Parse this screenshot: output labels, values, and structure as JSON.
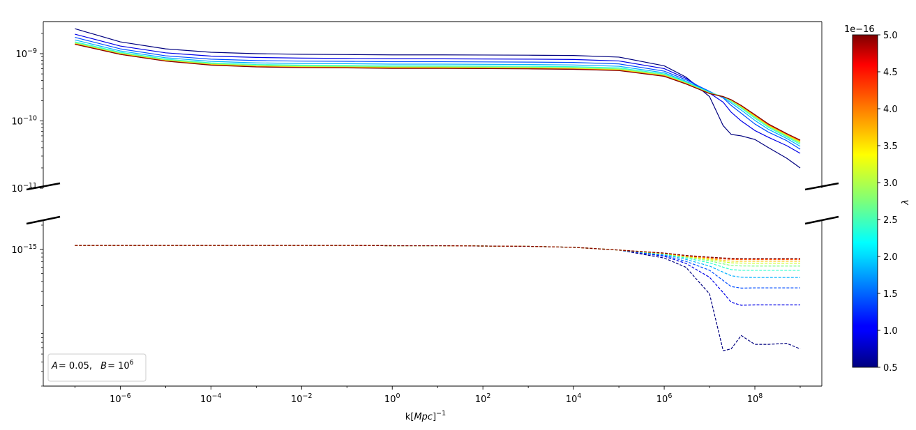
{
  "chart_data": {
    "type": "line",
    "xlabel": "k[Mpc]⁻¹",
    "x_scale": "log",
    "xlim": [
      2e-08,
      3000000000.0
    ],
    "x_ticks": [
      {
        "value": 1e-06,
        "base": "10",
        "exp": "−6"
      },
      {
        "value": 0.0001,
        "base": "10",
        "exp": "−4"
      },
      {
        "value": 0.01,
        "base": "10",
        "exp": "−2"
      },
      {
        "value": 1,
        "base": "10",
        "exp": "0"
      },
      {
        "value": 100,
        "base": "10",
        "exp": "2"
      },
      {
        "value": 10000,
        "base": "10",
        "exp": "4"
      },
      {
        "value": 1000000,
        "base": "10",
        "exp": "6"
      },
      {
        "value": 100000000,
        "base": "10",
        "exp": "8"
      }
    ],
    "y_scale": "log",
    "broken_y_axis": true,
    "top_panel": {
      "ylim": [
        1e-11,
        3e-09
      ],
      "y_ticks": [
        {
          "value": 1e-09,
          "base": "10",
          "exp": "−9"
        },
        {
          "value": 1e-10,
          "base": "10",
          "exp": "−10"
        },
        {
          "value": 1e-11,
          "base": "10",
          "exp": "−11"
        }
      ],
      "line_style": "solid"
    },
    "bottom_panel": {
      "ylim": [
        2e-17,
        2.3e-15
      ],
      "y_ticks": [
        {
          "value": 1e-15,
          "base": "10",
          "exp": "−15"
        }
      ],
      "line_style": "dashed"
    },
    "x": [
      1e-07,
      1e-06,
      1e-05,
      0.0001,
      0.001,
      0.01,
      0.1,
      1,
      10,
      100,
      1000,
      10000,
      100000,
      1000000,
      3000000,
      10000000,
      20000000,
      30000000,
      50000000,
      100000000,
      200000000,
      500000000,
      1000000000
    ],
    "series": [
      {
        "lambda": 5e-17,
        "color": "#00007f",
        "top": [
          2.35e-09,
          1.5e-09,
          1.18e-09,
          1.05e-09,
          1e-09,
          9.8e-10,
          9.7e-10,
          9.6e-10,
          9.6e-10,
          9.55e-10,
          9.5e-10,
          9.4e-10,
          8.9e-10,
          6.6e-10,
          4.5e-10,
          2.3e-10,
          8.5e-11,
          6.3e-11,
          6e-11,
          5.3e-11,
          4e-11,
          2.8e-11,
          2e-11
        ],
        "bottom": [
          1.12e-15,
          1.12e-15,
          1.12e-15,
          1.12e-15,
          1.12e-15,
          1.12e-15,
          1.12e-15,
          1.11e-15,
          1.11e-15,
          1.1e-15,
          1.09e-15,
          1.06e-15,
          9.8e-16,
          7.8e-16,
          6e-16,
          2.8e-16,
          5.5e-17,
          5.8e-17,
          8.5e-17,
          6.6e-17,
          6.6e-17,
          6.8e-17,
          5.8e-17
        ]
      },
      {
        "lambda": 1e-16,
        "color": "#0000e6",
        "top": [
          1.95e-09,
          1.3e-09,
          1.03e-09,
          9.2e-10,
          8.8e-10,
          8.6e-10,
          8.5e-10,
          8.4e-10,
          8.4e-10,
          8.35e-10,
          8.3e-10,
          8.2e-10,
          7.8e-10,
          6e-10,
          4.3e-10,
          2.6e-10,
          1.9e-10,
          1.35e-10,
          1e-10,
          7.2e-11,
          5.7e-11,
          4.3e-11,
          3.3e-11
        ],
        "bottom": [
          1.12e-15,
          1.12e-15,
          1.12e-15,
          1.12e-15,
          1.12e-15,
          1.12e-15,
          1.12e-15,
          1.11e-15,
          1.11e-15,
          1.1e-15,
          1.09e-15,
          1.06e-15,
          9.8e-16,
          8.2e-16,
          6.7e-16,
          4.5e-16,
          2.9e-16,
          2.2e-16,
          2.02e-16,
          2.04e-16,
          2.04e-16,
          2.04e-16,
          2.04e-16
        ]
      },
      {
        "lambda": 1.5e-16,
        "color": "#004cff",
        "top": [
          1.75e-09,
          1.18e-09,
          9.3e-10,
          8.3e-10,
          7.9e-10,
          7.75e-10,
          7.7e-10,
          7.6e-10,
          7.6e-10,
          7.55e-10,
          7.5e-10,
          7.4e-10,
          7.05e-10,
          5.5e-10,
          4.1e-10,
          2.75e-10,
          2.2e-10,
          1.7e-10,
          1.3e-10,
          9e-11,
          6.8e-11,
          5.1e-11,
          3.8e-11
        ],
        "bottom": [
          1.12e-15,
          1.12e-15,
          1.12e-15,
          1.12e-15,
          1.12e-15,
          1.12e-15,
          1.12e-15,
          1.11e-15,
          1.11e-15,
          1.1e-15,
          1.09e-15,
          1.06e-15,
          9.8e-16,
          8.4e-16,
          7.1e-16,
          5.5e-16,
          4.1e-16,
          3.45e-16,
          3.3e-16,
          3.32e-16,
          3.32e-16,
          3.32e-16,
          3.32e-16
        ]
      },
      {
        "lambda": 2e-16,
        "color": "#00b0ff",
        "top": [
          1.6e-09,
          1.1e-09,
          8.7e-10,
          7.7e-10,
          7.3e-10,
          7.15e-10,
          7.1e-10,
          7e-10,
          7e-10,
          6.95e-10,
          6.9e-10,
          6.8e-10,
          6.5e-10,
          5.2e-10,
          3.9e-10,
          2.7e-10,
          2.25e-10,
          1.85e-10,
          1.45e-10,
          1.02e-10,
          7.5e-11,
          5.5e-11,
          4.2e-11
        ],
        "bottom": [
          1.12e-15,
          1.12e-15,
          1.12e-15,
          1.12e-15,
          1.12e-15,
          1.12e-15,
          1.12e-15,
          1.11e-15,
          1.11e-15,
          1.1e-15,
          1.09e-15,
          1.06e-15,
          9.8e-16,
          8.6e-16,
          7.5e-16,
          6.2e-16,
          5.2e-16,
          4.7e-16,
          4.5e-16,
          4.47e-16,
          4.47e-16,
          4.47e-16,
          4.47e-16
        ]
      },
      {
        "lambda": 2.5e-16,
        "color": "#29ffce",
        "top": [
          1.5e-09,
          1.05e-09,
          8.3e-10,
          7.3e-10,
          6.9e-10,
          6.75e-10,
          6.7e-10,
          6.6e-10,
          6.6e-10,
          6.55e-10,
          6.5e-10,
          6.4e-10,
          6.15e-10,
          5e-10,
          3.8e-10,
          2.65e-10,
          2.3e-10,
          1.95e-10,
          1.55e-10,
          1.1e-10,
          8e-11,
          5.8e-11,
          4.5e-11
        ],
        "bottom": [
          1.12e-15,
          1.12e-15,
          1.12e-15,
          1.12e-15,
          1.12e-15,
          1.12e-15,
          1.12e-15,
          1.11e-15,
          1.11e-15,
          1.1e-15,
          1.09e-15,
          1.06e-15,
          9.8e-16,
          8.7e-16,
          7.8e-16,
          6.8e-16,
          6e-16,
          5.6e-16,
          5.5e-16,
          5.48e-16,
          5.48e-16,
          5.48e-16,
          5.48e-16
        ]
      },
      {
        "lambda": 3e-16,
        "color": "#7dff7a",
        "top": [
          1.45e-09,
          1.02e-09,
          8.1e-10,
          7.1e-10,
          6.7e-10,
          6.55e-10,
          6.5e-10,
          6.4e-10,
          6.4e-10,
          6.35e-10,
          6.3e-10,
          6.2e-10,
          5.95e-10,
          4.85e-10,
          3.7e-10,
          2.6e-10,
          2.3e-10,
          2e-10,
          1.6e-10,
          1.15e-10,
          8.3e-11,
          6e-11,
          4.7e-11
        ],
        "bottom": [
          1.12e-15,
          1.12e-15,
          1.12e-15,
          1.12e-15,
          1.12e-15,
          1.12e-15,
          1.12e-15,
          1.11e-15,
          1.11e-15,
          1.1e-15,
          1.09e-15,
          1.06e-15,
          9.8e-16,
          8.8e-16,
          8e-16,
          7.2e-16,
          6.6e-16,
          6.3e-16,
          6.22e-16,
          6.2e-16,
          6.2e-16,
          6.2e-16,
          6.2e-16
        ]
      },
      {
        "lambda": 3.5e-16,
        "color": "#ceff29",
        "top": [
          1.42e-09,
          1e-09,
          7.95e-10,
          6.95e-10,
          6.55e-10,
          6.4e-10,
          6.35e-10,
          6.25e-10,
          6.25e-10,
          6.2e-10,
          6.15e-10,
          6.05e-10,
          5.8e-10,
          4.75e-10,
          3.65e-10,
          2.58e-10,
          2.3e-10,
          2.03e-10,
          1.63e-10,
          1.18e-10,
          8.5e-11,
          6.2e-11,
          4.85e-11
        ],
        "bottom": [
          1.12e-15,
          1.12e-15,
          1.12e-15,
          1.12e-15,
          1.12e-15,
          1.12e-15,
          1.12e-15,
          1.11e-15,
          1.11e-15,
          1.1e-15,
          1.09e-15,
          1.06e-15,
          9.8e-16,
          8.85e-16,
          8.1e-16,
          7.45e-16,
          7e-16,
          6.8e-16,
          6.75e-16,
          6.73e-16,
          6.73e-16,
          6.73e-16,
          6.73e-16
        ]
      },
      {
        "lambda": 4e-16,
        "color": "#ffc400",
        "top": [
          1.4e-09,
          9.9e-10,
          7.85e-10,
          6.85e-10,
          6.45e-10,
          6.3e-10,
          6.25e-10,
          6.15e-10,
          6.15e-10,
          6.1e-10,
          6.05e-10,
          5.95e-10,
          5.7e-10,
          4.7e-10,
          3.6e-10,
          2.57e-10,
          2.3e-10,
          2.05e-10,
          1.66e-10,
          1.2e-10,
          8.7e-11,
          6.3e-11,
          5e-11
        ],
        "bottom": [
          1.12e-15,
          1.12e-15,
          1.12e-15,
          1.12e-15,
          1.12e-15,
          1.12e-15,
          1.12e-15,
          1.11e-15,
          1.11e-15,
          1.1e-15,
          1.09e-15,
          1.06e-15,
          9.8e-16,
          8.9e-16,
          8.2e-16,
          7.65e-16,
          7.3e-16,
          7.15e-16,
          7.1e-16,
          7.1e-16,
          7.1e-16,
          7.1e-16,
          7.1e-16
        ]
      },
      {
        "lambda": 4.5e-16,
        "color": "#ff4800",
        "top": [
          1.39e-09,
          9.8e-10,
          7.8e-10,
          6.8e-10,
          6.4e-10,
          6.25e-10,
          6.2e-10,
          6.1e-10,
          6.1e-10,
          6.05e-10,
          6e-10,
          5.9e-10,
          5.65e-10,
          4.65e-10,
          3.58e-10,
          2.56e-10,
          2.3e-10,
          2.06e-10,
          1.68e-10,
          1.22e-10,
          8.8e-11,
          6.4e-11,
          5.1e-11
        ],
        "bottom": [
          1.12e-15,
          1.12e-15,
          1.12e-15,
          1.12e-15,
          1.12e-15,
          1.12e-15,
          1.12e-15,
          1.11e-15,
          1.11e-15,
          1.1e-15,
          1.09e-15,
          1.06e-15,
          9.8e-16,
          8.95e-16,
          8.3e-16,
          7.85e-16,
          7.6e-16,
          7.5e-16,
          7.45e-16,
          7.45e-16,
          7.45e-16,
          7.45e-16,
          7.45e-16
        ]
      },
      {
        "lambda": 5e-16,
        "color": "#7f0000",
        "top": [
          1.38e-09,
          9.75e-10,
          7.75e-10,
          6.75e-10,
          6.35e-10,
          6.2e-10,
          6.15e-10,
          6.05e-10,
          6.05e-10,
          6e-10,
          5.95e-10,
          5.85e-10,
          5.6e-10,
          4.6e-10,
          3.55e-10,
          2.55e-10,
          2.3e-10,
          2.07e-10,
          1.7e-10,
          1.24e-10,
          9e-11,
          6.5e-11,
          5.2e-11
        ],
        "bottom": [
          1.12e-15,
          1.12e-15,
          1.12e-15,
          1.12e-15,
          1.12e-15,
          1.12e-15,
          1.12e-15,
          1.11e-15,
          1.11e-15,
          1.1e-15,
          1.09e-15,
          1.06e-15,
          9.8e-16,
          9e-16,
          8.4e-16,
          8e-16,
          7.8e-16,
          7.75e-16,
          7.72e-16,
          7.72e-16,
          7.72e-16,
          7.72e-16,
          7.72e-16
        ]
      }
    ],
    "annotation": {
      "A_label": "A",
      "A_value": "= 0.05,",
      "B_label": "B",
      "B_value": "= 10",
      "B_exp": "6"
    },
    "colorbar": {
      "label": "λ",
      "range": [
        5e-17,
        5e-16
      ],
      "offset_text": "1e−16",
      "tick_labels": [
        "0.5",
        "1.0",
        "1.5",
        "2.0",
        "2.5",
        "3.0",
        "3.5",
        "4.0",
        "4.5",
        "5.0"
      ],
      "colormap": "jet"
    },
    "grid": false,
    "legend": "lower-left"
  }
}
